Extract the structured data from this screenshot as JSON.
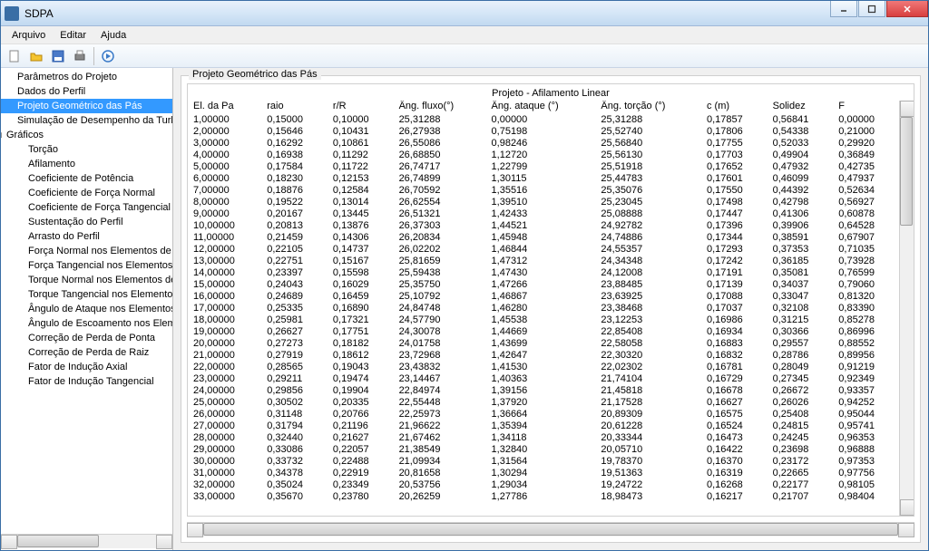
{
  "window": {
    "title": "SDPA"
  },
  "menu": {
    "items": [
      "Arquivo",
      "Editar",
      "Ajuda"
    ]
  },
  "toolbar": {
    "icons": [
      "new",
      "open",
      "save",
      "print",
      "run"
    ]
  },
  "tree": {
    "items": [
      {
        "label": "Parâmetros do Projeto",
        "level": 1
      },
      {
        "label": "Dados do Perfil",
        "level": 1
      },
      {
        "label": "Projeto Geométrico das Pás",
        "level": 1,
        "selected": true
      },
      {
        "label": "Simulação de Desempenho da Turbina",
        "level": 1
      },
      {
        "label": "Gráficos",
        "level": 0
      },
      {
        "label": "Torção",
        "level": 2
      },
      {
        "label": "Afilamento",
        "level": 2
      },
      {
        "label": "Coeficiente de Potência",
        "level": 2
      },
      {
        "label": "Coeficiente de Força Normal",
        "level": 2
      },
      {
        "label": "Coeficiente de Força Tangencial",
        "level": 2
      },
      {
        "label": "Sustentação do Perfil",
        "level": 2
      },
      {
        "label": "Arrasto do Perfil",
        "level": 2
      },
      {
        "label": "Força Normal nos Elementos de Pá",
        "level": 2
      },
      {
        "label": "Força Tangencial nos  Elementos de",
        "level": 2
      },
      {
        "label": "Torque Normal nos Elementos de Pá",
        "level": 2
      },
      {
        "label": "Torque Tangencial nos  Elementos d",
        "level": 2
      },
      {
        "label": "Ângulo de Ataque nos Elementos de",
        "level": 2
      },
      {
        "label": "Ângulo de Escoamento nos Elemento",
        "level": 2
      },
      {
        "label": "Correção de Perda  de Ponta",
        "level": 2
      },
      {
        "label": "Correção de Perda de Raiz",
        "level": 2
      },
      {
        "label": "Fator de Indução Axial",
        "level": 2
      },
      {
        "label": "Fator de Indução Tangencial",
        "level": 2
      }
    ]
  },
  "panel": {
    "group_label": "Projeto Geométrico das Pás",
    "table_title": "Projeto - Afilamento Linear",
    "columns": [
      "El. da Pa",
      "raio",
      "r/R",
      "Âng. fluxo(°)",
      "Âng. ataque (°)",
      "Âng. torção (°)",
      "c (m)",
      "Solidez",
      "F"
    ],
    "rows": [
      [
        "1,00000",
        "0,15000",
        "0,10000",
        "25,31288",
        "0,00000",
        "25,31288",
        "0,17857",
        "0,56841",
        "0,00000"
      ],
      [
        "2,00000",
        "0,15646",
        "0,10431",
        "26,27938",
        "0,75198",
        "25,52740",
        "0,17806",
        "0,54338",
        "0,21000"
      ],
      [
        "3,00000",
        "0,16292",
        "0,10861",
        "26,55086",
        "0,98246",
        "25,56840",
        "0,17755",
        "0,52033",
        "0,29920"
      ],
      [
        "4,00000",
        "0,16938",
        "0,11292",
        "26,68850",
        "1,12720",
        "25,56130",
        "0,17703",
        "0,49904",
        "0,36849"
      ],
      [
        "5,00000",
        "0,17584",
        "0,11722",
        "26,74717",
        "1,22799",
        "25,51918",
        "0,17652",
        "0,47932",
        "0,42735"
      ],
      [
        "6,00000",
        "0,18230",
        "0,12153",
        "26,74899",
        "1,30115",
        "25,44783",
        "0,17601",
        "0,46099",
        "0,47937"
      ],
      [
        "7,00000",
        "0,18876",
        "0,12584",
        "26,70592",
        "1,35516",
        "25,35076",
        "0,17550",
        "0,44392",
        "0,52634"
      ],
      [
        "8,00000",
        "0,19522",
        "0,13014",
        "26,62554",
        "1,39510",
        "25,23045",
        "0,17498",
        "0,42798",
        "0,56927"
      ],
      [
        "9,00000",
        "0,20167",
        "0,13445",
        "26,51321",
        "1,42433",
        "25,08888",
        "0,17447",
        "0,41306",
        "0,60878"
      ],
      [
        "10,00000",
        "0,20813",
        "0,13876",
        "26,37303",
        "1,44521",
        "24,92782",
        "0,17396",
        "0,39906",
        "0,64528"
      ],
      [
        "11,00000",
        "0,21459",
        "0,14306",
        "26,20834",
        "1,45948",
        "24,74886",
        "0,17344",
        "0,38591",
        "0,67907"
      ],
      [
        "12,00000",
        "0,22105",
        "0,14737",
        "26,02202",
        "1,46844",
        "24,55357",
        "0,17293",
        "0,37353",
        "0,71035"
      ],
      [
        "13,00000",
        "0,22751",
        "0,15167",
        "25,81659",
        "1,47312",
        "24,34348",
        "0,17242",
        "0,36185",
        "0,73928"
      ],
      [
        "14,00000",
        "0,23397",
        "0,15598",
        "25,59438",
        "1,47430",
        "24,12008",
        "0,17191",
        "0,35081",
        "0,76599"
      ],
      [
        "15,00000",
        "0,24043",
        "0,16029",
        "25,35750",
        "1,47266",
        "23,88485",
        "0,17139",
        "0,34037",
        "0,79060"
      ],
      [
        "16,00000",
        "0,24689",
        "0,16459",
        "25,10792",
        "1,46867",
        "23,63925",
        "0,17088",
        "0,33047",
        "0,81320"
      ],
      [
        "17,00000",
        "0,25335",
        "0,16890",
        "24,84748",
        "1,46280",
        "23,38468",
        "0,17037",
        "0,32108",
        "0,83390"
      ],
      [
        "18,00000",
        "0,25981",
        "0,17321",
        "24,57790",
        "1,45538",
        "23,12253",
        "0,16986",
        "0,31215",
        "0,85278"
      ],
      [
        "19,00000",
        "0,26627",
        "0,17751",
        "24,30078",
        "1,44669",
        "22,85408",
        "0,16934",
        "0,30366",
        "0,86996"
      ],
      [
        "20,00000",
        "0,27273",
        "0,18182",
        "24,01758",
        "1,43699",
        "22,58058",
        "0,16883",
        "0,29557",
        "0,88552"
      ],
      [
        "21,00000",
        "0,27919",
        "0,18612",
        "23,72968",
        "1,42647",
        "22,30320",
        "0,16832",
        "0,28786",
        "0,89956"
      ],
      [
        "22,00000",
        "0,28565",
        "0,19043",
        "23,43832",
        "1,41530",
        "22,02302",
        "0,16781",
        "0,28049",
        "0,91219"
      ],
      [
        "23,00000",
        "0,29211",
        "0,19474",
        "23,14467",
        "1,40363",
        "21,74104",
        "0,16729",
        "0,27345",
        "0,92349"
      ],
      [
        "24,00000",
        "0,29856",
        "0,19904",
        "22,84974",
        "1,39156",
        "21,45818",
        "0,16678",
        "0,26672",
        "0,93357"
      ],
      [
        "25,00000",
        "0,30502",
        "0,20335",
        "22,55448",
        "1,37920",
        "21,17528",
        "0,16627",
        "0,26026",
        "0,94252"
      ],
      [
        "26,00000",
        "0,31148",
        "0,20766",
        "22,25973",
        "1,36664",
        "20,89309",
        "0,16575",
        "0,25408",
        "0,95044"
      ],
      [
        "27,00000",
        "0,31794",
        "0,21196",
        "21,96622",
        "1,35394",
        "20,61228",
        "0,16524",
        "0,24815",
        "0,95741"
      ],
      [
        "28,00000",
        "0,32440",
        "0,21627",
        "21,67462",
        "1,34118",
        "20,33344",
        "0,16473",
        "0,24245",
        "0,96353"
      ],
      [
        "29,00000",
        "0,33086",
        "0,22057",
        "21,38549",
        "1,32840",
        "20,05710",
        "0,16422",
        "0,23698",
        "0,96888"
      ],
      [
        "30,00000",
        "0,33732",
        "0,22488",
        "21,09934",
        "1,31564",
        "19,78370",
        "0,16370",
        "0,23172",
        "0,97353"
      ],
      [
        "31,00000",
        "0,34378",
        "0,22919",
        "20,81658",
        "1,30294",
        "19,51363",
        "0,16319",
        "0,22665",
        "0,97756"
      ],
      [
        "32,00000",
        "0,35024",
        "0,23349",
        "20,53756",
        "1,29034",
        "19,24722",
        "0,16268",
        "0,22177",
        "0,98105"
      ],
      [
        "33,00000",
        "0,35670",
        "0,23780",
        "20,26259",
        "1,27786",
        "18,98473",
        "0,16217",
        "0,21707",
        "0,98404"
      ]
    ]
  },
  "colors": {
    "selection_bg": "#3399ff",
    "titlebar_grad_top": "#e8f1fb",
    "titlebar_grad_bot": "#c1d9f0",
    "close_bg": "#d84040"
  }
}
